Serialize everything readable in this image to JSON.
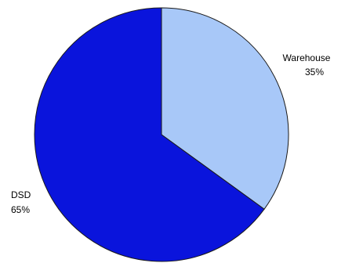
{
  "chart_data": {
    "type": "pie",
    "slices": [
      {
        "name": "Warehouse",
        "value": 35,
        "label": "35%",
        "color": "#a8c8f8"
      },
      {
        "name": "DSD",
        "value": 65,
        "label": "65%",
        "color": "#0a14dc"
      }
    ],
    "start_angle": "12 o'clock",
    "direction": "clockwise",
    "legend": "none"
  }
}
